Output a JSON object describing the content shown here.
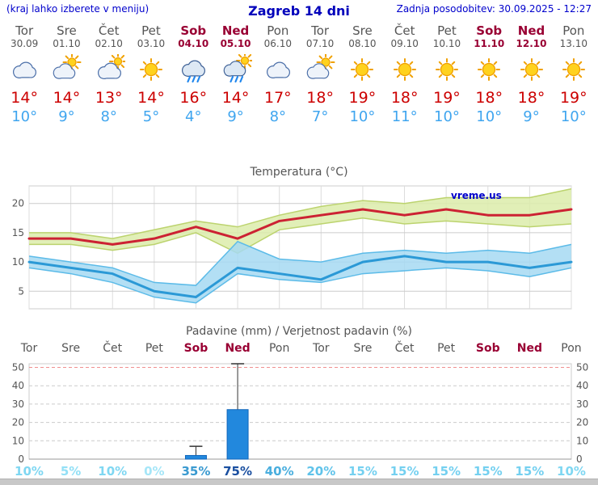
{
  "header": {
    "note": "(kraj lahko izberete v meniju)",
    "title": "Zagreb 14 dni",
    "updated": "Zadnja posodobitev: 30.09.2025 - 12:27"
  },
  "colors": {
    "header_blue": "#0000cc",
    "weekday_text": "#555555",
    "weekend_text": "#990033",
    "tmax_text": "#cc0000",
    "tmin_text": "#3fa5ef",
    "tmax_line": "#cc2233",
    "tmin_line": "#2b99d6",
    "tmax_band": "#dcecaa",
    "tmin_band": "#a6d9f2",
    "bar_fill": "#2288dd",
    "bar_stroke": "#1166bb",
    "watermark": "#0000cc"
  },
  "days": [
    {
      "name": "Tor",
      "date": "30.09",
      "weekend": false,
      "icon": "cloudy",
      "tmax": "14°",
      "tmin": "10°"
    },
    {
      "name": "Sre",
      "date": "01.10",
      "weekend": false,
      "icon": "partly-cloudy",
      "tmax": "14°",
      "tmin": "9°"
    },
    {
      "name": "Čet",
      "date": "02.10",
      "weekend": false,
      "icon": "mostly-cloudy",
      "tmax": "13°",
      "tmin": "8°"
    },
    {
      "name": "Pet",
      "date": "03.10",
      "weekend": false,
      "icon": "sunny",
      "tmax": "14°",
      "tmin": "5°"
    },
    {
      "name": "Sob",
      "date": "04.10",
      "weekend": true,
      "icon": "rain",
      "tmax": "16°",
      "tmin": "4°"
    },
    {
      "name": "Ned",
      "date": "05.10",
      "weekend": true,
      "icon": "rain-sun",
      "tmax": "14°",
      "tmin": "9°"
    },
    {
      "name": "Pon",
      "date": "06.10",
      "weekend": false,
      "icon": "cloudy",
      "tmax": "17°",
      "tmin": "8°"
    },
    {
      "name": "Tor",
      "date": "07.10",
      "weekend": false,
      "icon": "partly-cloudy",
      "tmax": "18°",
      "tmin": "7°"
    },
    {
      "name": "Sre",
      "date": "08.10",
      "weekend": false,
      "icon": "sunny",
      "tmax": "19°",
      "tmin": "10°"
    },
    {
      "name": "Čet",
      "date": "09.10",
      "weekend": false,
      "icon": "sunny",
      "tmax": "18°",
      "tmin": "11°"
    },
    {
      "name": "Pet",
      "date": "10.10",
      "weekend": false,
      "icon": "sunny",
      "tmax": "19°",
      "tmin": "10°"
    },
    {
      "name": "Sob",
      "date": "11.10",
      "weekend": true,
      "icon": "sunny",
      "tmax": "18°",
      "tmin": "10°"
    },
    {
      "name": "Ned",
      "date": "12.10",
      "weekend": true,
      "icon": "sunny",
      "tmax": "18°",
      "tmin": "9°"
    },
    {
      "name": "Pon",
      "date": "13.10",
      "weekend": false,
      "icon": "sunny",
      "tmax": "19°",
      "tmin": "10°"
    }
  ],
  "chart_data": [
    {
      "type": "line",
      "title": "Temperatura (°C)",
      "watermark": "vreme.us",
      "x_labels": [
        "Tor",
        "Sre",
        "Čet",
        "Pet",
        "Sob",
        "Ned",
        "Pon",
        "Tor",
        "Sre",
        "Čet",
        "Pet",
        "Sob",
        "Ned",
        "Pon"
      ],
      "ylim": [
        2,
        23
      ],
      "yticks": [
        5,
        10,
        15,
        20
      ],
      "grid": true,
      "series": [
        {
          "name": "max temperature",
          "color": "#cc2233",
          "values": [
            14,
            14,
            13,
            14,
            16,
            14,
            17,
            18,
            19,
            18,
            19,
            18,
            18,
            19
          ]
        },
        {
          "name": "min temperature",
          "color": "#2b99d6",
          "values": [
            10,
            9,
            8,
            5,
            4,
            9,
            8,
            7,
            10,
            11,
            10,
            10,
            9,
            10
          ]
        }
      ],
      "bands": [
        {
          "name": "max temperature range",
          "fill": "#dcecaa",
          "edge": "#bcd36e",
          "upper": [
            15,
            15,
            14,
            15.5,
            17,
            16,
            18,
            19.5,
            20.5,
            20,
            21,
            21,
            21,
            22.5
          ],
          "lower": [
            13,
            13,
            12,
            13,
            15,
            11.5,
            15.5,
            16.5,
            17.5,
            16.5,
            17,
            16.5,
            16,
            16.5
          ]
        },
        {
          "name": "min temperature range",
          "fill": "#a6d9f2",
          "edge": "#5cbbe8",
          "upper": [
            11,
            10,
            9,
            6.5,
            6,
            13.5,
            10.5,
            10,
            11.5,
            12,
            11.5,
            12,
            11.5,
            13
          ],
          "lower": [
            9,
            8,
            6.5,
            4,
            3,
            8,
            7,
            6.5,
            8,
            8.5,
            9,
            8.5,
            7.5,
            9
          ]
        }
      ]
    },
    {
      "type": "bar",
      "title": "Padavine (mm) / Verjetnost padavin (%)",
      "categories": [
        "Tor",
        "Sre",
        "Čet",
        "Pet",
        "Sob",
        "Ned",
        "Pon",
        "Tor",
        "Sre",
        "Čet",
        "Pet",
        "Sob",
        "Ned",
        "Pon"
      ],
      "values": [
        0,
        0,
        0,
        0,
        2,
        27,
        0,
        0,
        0,
        0,
        0,
        0,
        0,
        0
      ],
      "whiskers": [
        0,
        0,
        0,
        0,
        7,
        52,
        0,
        0,
        0,
        0,
        0,
        0,
        0,
        0
      ],
      "ylim": [
        0,
        52
      ],
      "yticks": [
        0,
        10,
        20,
        30,
        40,
        50
      ],
      "highlight_tick": 50,
      "probabilities": [
        {
          "label": "10%",
          "color": "#7fd7f2"
        },
        {
          "label": "5%",
          "color": "#93e0f6"
        },
        {
          "label": "10%",
          "color": "#7fd7f2"
        },
        {
          "label": "0%",
          "color": "#a5e6f8"
        },
        {
          "label": "35%",
          "color": "#3a9ad0"
        },
        {
          "label": "75%",
          "color": "#1a4fa0"
        },
        {
          "label": "40%",
          "color": "#49aede"
        },
        {
          "label": "20%",
          "color": "#5fc3ea"
        },
        {
          "label": "15%",
          "color": "#74d0f0"
        },
        {
          "label": "15%",
          "color": "#74d0f0"
        },
        {
          "label": "15%",
          "color": "#74d0f0"
        },
        {
          "label": "15%",
          "color": "#74d0f0"
        },
        {
          "label": "15%",
          "color": "#74d0f0"
        },
        {
          "label": "10%",
          "color": "#7fd7f2"
        }
      ]
    }
  ]
}
